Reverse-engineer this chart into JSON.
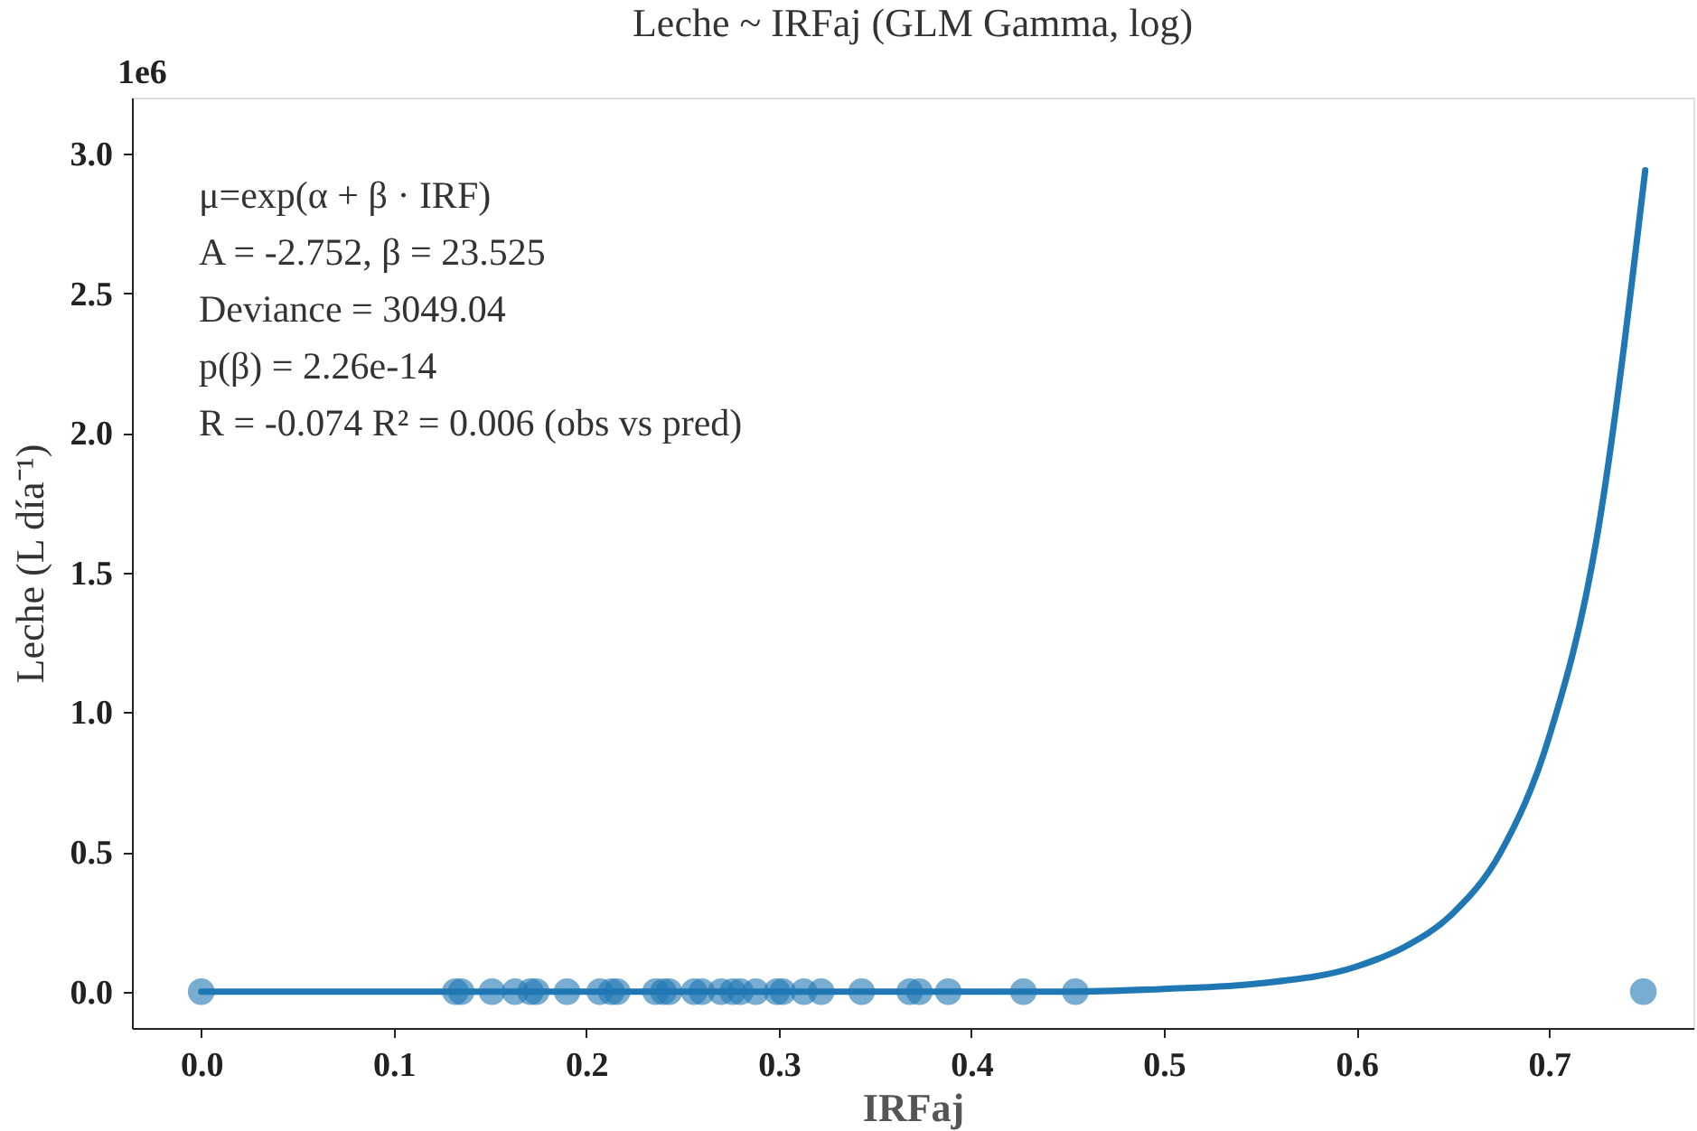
{
  "chart_data": {
    "type": "scatter",
    "title": "Leche ~ IRFaj (GLM Gamma, log)",
    "xlabel": "IRFaj",
    "ylabel": "Leche (L día⁻¹)",
    "annotations": [
      "1e6",
      "μ=exp(α + β · IRF)",
      "A = -2.752, β = 23.525",
      "Deviance = 3049.04",
      "p(β) = 2.26e-14",
      "R = -0.074    R² = 0.006 (obs vs pred)"
    ],
    "xlim": [
      -0.036,
      0.775
    ],
    "ylim": [
      -0.13,
      3.2
    ],
    "xticks": [
      {
        "value": 0,
        "label": "0.0"
      },
      {
        "value": 0.1,
        "label": "0.1"
      },
      {
        "value": 0.2,
        "label": "0.2"
      },
      {
        "value": 0.3,
        "label": "0.3"
      },
      {
        "value": 0.4,
        "label": "0.4"
      },
      {
        "value": 0.5,
        "label": "0.5"
      },
      {
        "value": 0.6,
        "label": "0.6"
      },
      {
        "value": 0.7,
        "label": "0.7"
      }
    ],
    "yticks": [
      {
        "value": 0,
        "label": "0.0"
      },
      0.5,
      {
        "value": 1,
        "label": "1.0"
      },
      1.5,
      {
        "value": 2,
        "label": "2.0"
      },
      2.5,
      {
        "value": 3,
        "label": "3.0"
      }
    ],
    "grid": false,
    "series": [
      {
        "type": "scatter",
        "color": "#1f77b4",
        "marker": "circle",
        "x": [
          0.0,
          0.132,
          0.135,
          0.151,
          0.163,
          0.171,
          0.174,
          0.19,
          0.207,
          0.213,
          0.216,
          0.236,
          0.24,
          0.243,
          0.256,
          0.26,
          0.27,
          0.276,
          0.28,
          0.288,
          0.299,
          0.302,
          0.313,
          0.322,
          0.343,
          0.368,
          0.373,
          0.388,
          0.427,
          0.454,
          0.749
        ],
        "values": [
          0,
          0,
          0,
          0,
          0,
          0,
          0,
          0,
          0,
          0,
          0,
          0,
          0,
          0,
          0,
          0,
          0,
          0,
          0,
          0,
          0,
          0,
          0,
          0,
          0,
          0,
          0,
          0,
          0,
          0,
          0
        ]
      },
      {
        "type": "line",
        "color": "#1f77b4",
        "line_style": "solid",
        "marker": "none",
        "x": [
          0.0,
          0.2,
          0.4,
          0.45,
          0.5,
          0.55,
          0.6,
          0.625,
          0.65,
          0.675,
          0.7,
          0.725,
          0.75
        ],
        "values": [
          0,
          0,
          0,
          0,
          0.01,
          0.03,
          0.09,
          0.16,
          0.28,
          0.5,
          0.91,
          1.63,
          2.94
        ]
      }
    ]
  }
}
